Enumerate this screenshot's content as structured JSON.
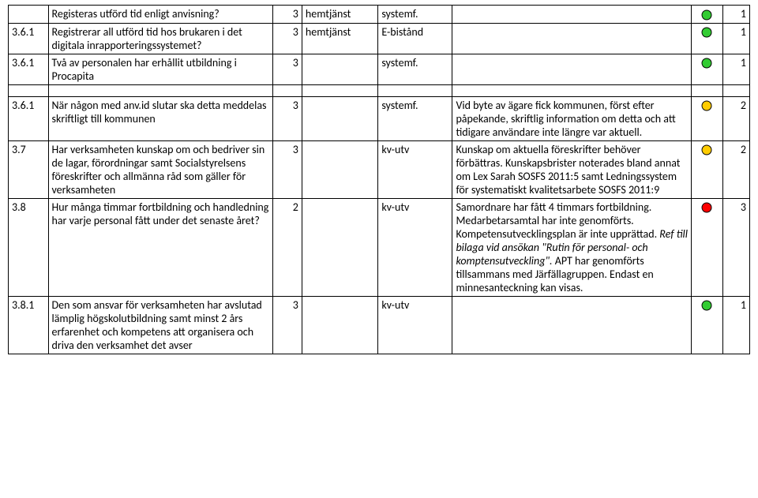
{
  "colors": {
    "green": "#33cc33",
    "amber": "#ffcc00",
    "red": "#ff0000",
    "stroke": "#000000"
  },
  "rows": [
    {
      "id": "",
      "text": "Registeras utförd tid enligt anvisning?",
      "score1": "3",
      "col3": "hemtjänst",
      "col4": "systemf.",
      "comment": "",
      "dot": "green",
      "score2": "1"
    },
    {
      "id": "3.6.1",
      "text": "Registrerar all utförd tid hos brukaren i det digitala inrapporteringssystemet?",
      "score1": "3",
      "col3": "hemtjänst",
      "col4": "E-bistånd",
      "comment": "",
      "dot": "green",
      "score2": "1"
    },
    {
      "id": "3.6.1",
      "text": "Två av personalen har erhållit utbildning i Procapita",
      "score1": "3",
      "col3": "",
      "col4": "systemf.",
      "comment": "",
      "dot": "green",
      "score2": "1"
    },
    {
      "spacer": true
    },
    {
      "id": "3.6.1",
      "text": "När någon med anv.id slutar ska detta meddelas skriftligt till kommunen",
      "score1": "3",
      "col3": "",
      "col4": "systemf.",
      "comment": "Vid byte av ägare fick kommunen, först efter påpekande, skriftlig information om detta och att tidigare användare inte längre var aktuell.",
      "dot": "amber",
      "score2": "2"
    },
    {
      "id": "3.7",
      "text": "Har verksamheten kunskap om och bedriver sin de lagar, förordningar samt Socialstyrelsens föreskrifter och allmänna råd som gäller för verksamheten",
      "score1": "3",
      "col3": "",
      "col4": "kv-utv",
      "comment": "Kunskap om aktuella föreskrifter behöver förbättras. Kunskapsbrister noterades bland annat om Lex Sarah SOSFS 2011:5 samt Ledningssystem för systematiskt kvalitetsarbete SOSFS 2011:9",
      "dot": "amber",
      "score2": "2"
    },
    {
      "id": "3.8",
      "text": "Hur många timmar fortbildning och handledning har varje personal fått under det senaste året?",
      "score1": "2",
      "col3": "",
      "col4": "kv-utv",
      "comment_pre": "Samordnare har fått 4 timmars fortbildning. Medarbetarsamtal har inte genomförts. Kompetensutvecklingsplan är inte upprättad. ",
      "comment_italic": "Ref till bilaga vid ansökan \"Rutin för personal- och komptensutveckling\".",
      "comment_post": "  APT har genomförts tillsammans med Järfällagruppen. Endast en minnesanteckning kan visas.",
      "dot": "red",
      "score2": "3"
    },
    {
      "id": "3.8.1",
      "text": "Den som ansvar för verksamheten har avslutad lämplig högskolutbildning samt minst 2 års erfarenhet och kompetens att organisera och driva den verksamhet det avser",
      "score1": "3",
      "col3": "",
      "col4": "kv-utv",
      "comment": "",
      "dot": "green",
      "score2": "1"
    }
  ]
}
